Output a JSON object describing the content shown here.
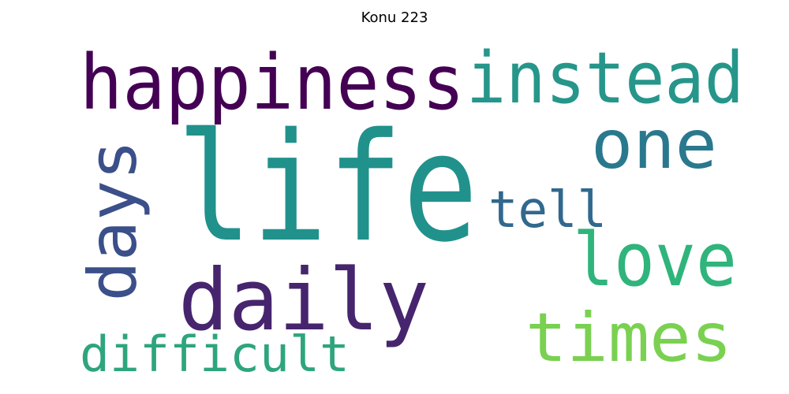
{
  "title": "Konu 223",
  "words": [
    {
      "text": "life",
      "color": "#21918c"
    },
    {
      "text": "happiness",
      "color": "#440154"
    },
    {
      "text": "instead",
      "color": "#26968a"
    },
    {
      "text": "one",
      "color": "#2a788e"
    },
    {
      "text": "days",
      "color": "#3b4f8a"
    },
    {
      "text": "tell",
      "color": "#31688e"
    },
    {
      "text": "love",
      "color": "#2fb47c"
    },
    {
      "text": "daily",
      "color": "#46256e"
    },
    {
      "text": "times",
      "color": "#7ad151"
    },
    {
      "text": "difficult",
      "color": "#2ea57c"
    }
  ]
}
